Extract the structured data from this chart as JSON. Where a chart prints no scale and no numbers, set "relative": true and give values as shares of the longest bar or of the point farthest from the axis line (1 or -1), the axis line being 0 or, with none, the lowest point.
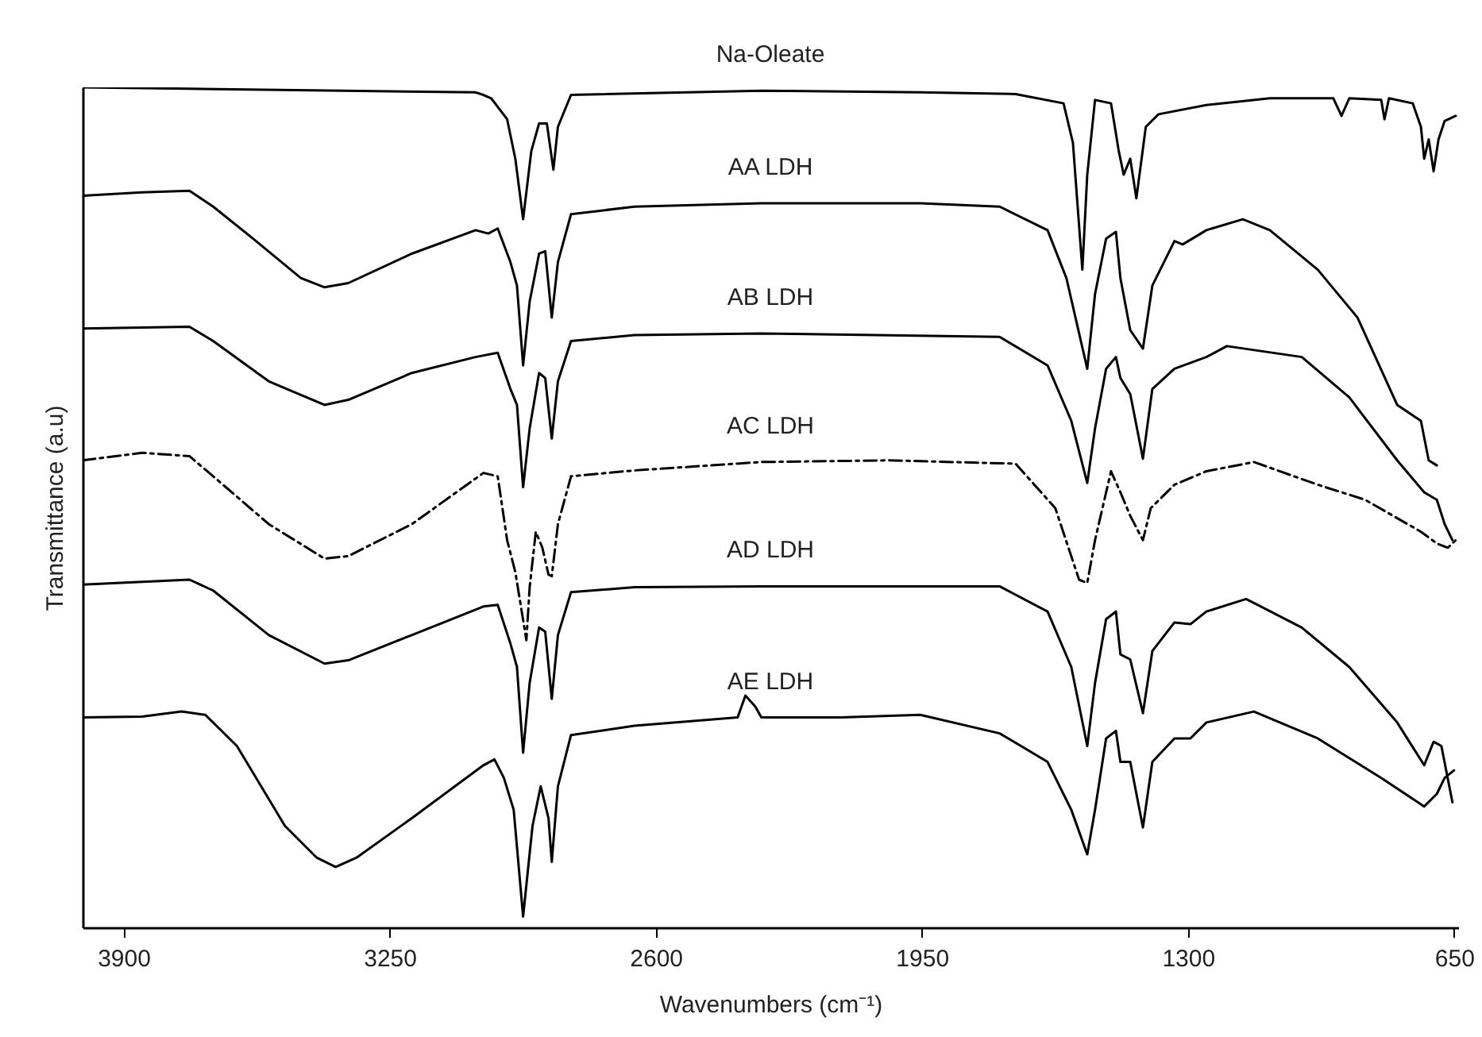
{
  "chart_data": {
    "type": "line",
    "relative": true,
    "xlabel": "Wavenumbers (cm⁻¹)",
    "ylabel": "Transmittance (a.u)",
    "xlim": [
      4000,
      640
    ],
    "xticks": [
      3900,
      3250,
      2600,
      1950,
      1300,
      650
    ],
    "grid": false,
    "marker": "none",
    "series": [
      {
        "name": "Na-Oleate",
        "color": "#000000",
        "line_style": "solid",
        "x": [
          4000,
          3040,
          3021,
          3002,
          2963,
          2943,
          2924,
          2904,
          2885,
          2866,
          2850,
          2839,
          2807,
          2342,
          1954,
          1721,
          1604,
          1581,
          1558,
          1546,
          1527,
          1488,
          1469,
          1457,
          1441,
          1426,
          1403,
          1372,
          1255,
          1100,
          945,
          925,
          906,
          828,
          820,
          809,
          751,
          731,
          723,
          712,
          700,
          688,
          673,
          646
        ],
        "values": [
          1.0,
          0.994,
          0.991,
          0.987,
          0.962,
          0.915,
          0.843,
          0.924,
          0.957,
          0.957,
          0.902,
          0.953,
          0.991,
          0.996,
          0.994,
          0.992,
          0.981,
          0.934,
          0.783,
          0.896,
          0.985,
          0.981,
          0.924,
          0.896,
          0.915,
          0.868,
          0.953,
          0.968,
          0.979,
          0.987,
          0.987,
          0.966,
          0.987,
          0.985,
          0.962,
          0.987,
          0.981,
          0.953,
          0.915,
          0.938,
          0.9,
          0.938,
          0.96,
          0.966
        ]
      },
      {
        "name": "AA LDH",
        "color": "#000000",
        "line_style": "solid",
        "x": [
          4000,
          3855,
          3739,
          3681,
          3584,
          3467,
          3409,
          3351,
          3196,
          3040,
          3009,
          2986,
          2955,
          2939,
          2924,
          2908,
          2885,
          2870,
          2854,
          2839,
          2807,
          2652,
          2342,
          1954,
          1760,
          1643,
          1597,
          1546,
          1527,
          1500,
          1476,
          1465,
          1441,
          1410,
          1387,
          1333,
          1313,
          1255,
          1166,
          1100,
          983,
          886,
          789,
          731,
          712,
          692
        ],
        "values": [
          0.871,
          0.875,
          0.877,
          0.858,
          0.82,
          0.773,
          0.762,
          0.767,
          0.802,
          0.83,
          0.826,
          0.832,
          0.792,
          0.764,
          0.669,
          0.745,
          0.802,
          0.805,
          0.726,
          0.792,
          0.849,
          0.858,
          0.862,
          0.862,
          0.858,
          0.83,
          0.773,
          0.665,
          0.754,
          0.82,
          0.828,
          0.773,
          0.711,
          0.689,
          0.764,
          0.817,
          0.813,
          0.83,
          0.843,
          0.83,
          0.783,
          0.726,
          0.622,
          0.603,
          0.556,
          0.55
        ]
      },
      {
        "name": "AB LDH",
        "color": "#000000",
        "line_style": "solid",
        "x": [
          4000,
          3739,
          3681,
          3545,
          3409,
          3351,
          3196,
          3040,
          2986,
          2955,
          2939,
          2924,
          2908,
          2885,
          2870,
          2854,
          2839,
          2807,
          2652,
          2342,
          1760,
          1643,
          1585,
          1546,
          1527,
          1500,
          1476,
          1465,
          1441,
          1410,
          1387,
          1333,
          1255,
          1205,
          1022,
          906,
          789,
          723,
          692,
          673,
          654
        ],
        "values": [
          0.713,
          0.715,
          0.698,
          0.65,
          0.622,
          0.628,
          0.66,
          0.679,
          0.684,
          0.641,
          0.622,
          0.524,
          0.594,
          0.66,
          0.654,
          0.582,
          0.65,
          0.698,
          0.705,
          0.707,
          0.703,
          0.669,
          0.603,
          0.529,
          0.594,
          0.665,
          0.679,
          0.654,
          0.635,
          0.558,
          0.641,
          0.665,
          0.679,
          0.692,
          0.679,
          0.631,
          0.556,
          0.518,
          0.509,
          0.48,
          0.461
        ]
      },
      {
        "name": "AC LDH",
        "color": "#000000",
        "line_style": "dashed",
        "x": [
          4000,
          3855,
          3739,
          3681,
          3545,
          3409,
          3351,
          3196,
          3021,
          2986,
          2963,
          2943,
          2916,
          2908,
          2893,
          2877,
          2862,
          2854,
          2839,
          2807,
          2652,
          2342,
          2031,
          1721,
          1624,
          1566,
          1546,
          1527,
          1488,
          1465,
          1441,
          1410,
          1391,
          1333,
          1255,
          1139,
          983,
          867,
          731,
          692,
          665,
          646
        ],
        "values": [
          0.556,
          0.565,
          0.561,
          0.537,
          0.48,
          0.439,
          0.442,
          0.48,
          0.541,
          0.537,
          0.461,
          0.423,
          0.342,
          0.405,
          0.471,
          0.452,
          0.42,
          0.418,
          0.48,
          0.537,
          0.544,
          0.554,
          0.556,
          0.552,
          0.499,
          0.414,
          0.41,
          0.461,
          0.543,
          0.518,
          0.49,
          0.461,
          0.499,
          0.527,
          0.543,
          0.554,
          0.527,
          0.509,
          0.471,
          0.457,
          0.452,
          0.461
        ]
      },
      {
        "name": "AD LDH",
        "color": "#000000",
        "line_style": "solid",
        "x": [
          4000,
          3739,
          3681,
          3545,
          3409,
          3351,
          3196,
          3021,
          2986,
          2955,
          2939,
          2924,
          2908,
          2885,
          2870,
          2854,
          2839,
          2807,
          2652,
          2342,
          1760,
          1643,
          1585,
          1546,
          1527,
          1500,
          1476,
          1465,
          1441,
          1410,
          1387,
          1333,
          1294,
          1255,
          1158,
          1022,
          906,
          789,
          723,
          700,
          681,
          654
        ],
        "values": [
          0.408,
          0.414,
          0.401,
          0.348,
          0.314,
          0.318,
          0.348,
          0.382,
          0.384,
          0.338,
          0.31,
          0.208,
          0.291,
          0.357,
          0.352,
          0.272,
          0.348,
          0.399,
          0.405,
          0.406,
          0.406,
          0.376,
          0.31,
          0.216,
          0.291,
          0.367,
          0.376,
          0.325,
          0.319,
          0.255,
          0.329,
          0.363,
          0.361,
          0.376,
          0.391,
          0.357,
          0.31,
          0.244,
          0.193,
          0.221,
          0.216,
          0.149
        ]
      },
      {
        "name": "AE LDH",
        "color": "#000000",
        "line_style": "solid",
        "x": [
          4000,
          3855,
          3758,
          3700,
          3623,
          3506,
          3428,
          3382,
          3331,
          3196,
          3021,
          2994,
          2971,
          2947,
          2924,
          2901,
          2881,
          2862,
          2854,
          2839,
          2807,
          2652,
          2400,
          2381,
          2357,
          2342,
          2148,
          1954,
          1760,
          1643,
          1585,
          1546,
          1527,
          1500,
          1476,
          1465,
          1441,
          1410,
          1387,
          1333,
          1294,
          1255,
          1139,
          983,
          828,
          723,
          692,
          673,
          650
        ],
        "values": [
          0.25,
          0.251,
          0.257,
          0.253,
          0.216,
          0.121,
          0.083,
          0.072,
          0.083,
          0.13,
          0.193,
          0.2,
          0.178,
          0.14,
          0.013,
          0.121,
          0.168,
          0.13,
          0.078,
          0.168,
          0.229,
          0.24,
          0.25,
          0.276,
          0.263,
          0.25,
          0.25,
          0.253,
          0.231,
          0.197,
          0.14,
          0.087,
          0.14,
          0.225,
          0.234,
          0.197,
          0.197,
          0.119,
          0.197,
          0.225,
          0.225,
          0.244,
          0.257,
          0.225,
          0.178,
          0.144,
          0.159,
          0.178,
          0.187
        ]
      }
    ]
  }
}
